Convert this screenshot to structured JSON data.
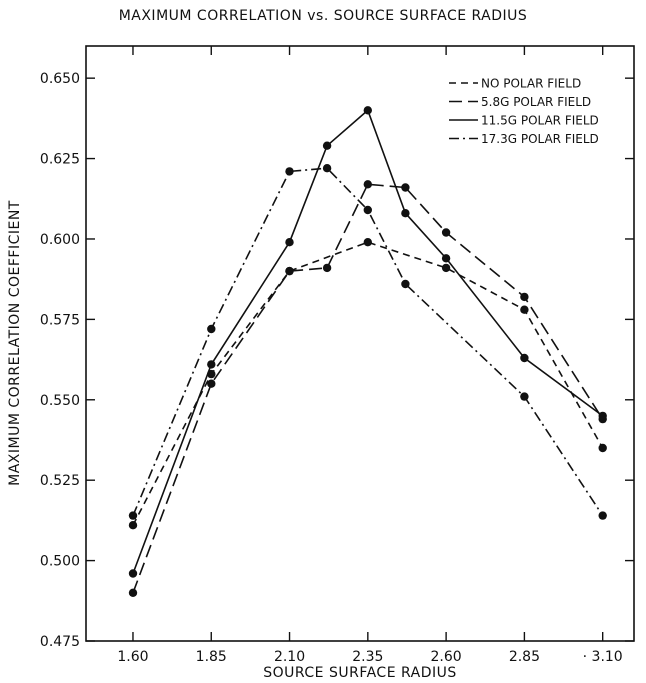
{
  "chart_data": {
    "type": "line",
    "title": "MAXIMUM CORRELATION vs. SOURCE SURFACE RADIUS",
    "xlabel": "SOURCE SURFACE RADIUS",
    "ylabel": "MAXIMUM CORRELATION COEFFICIENT",
    "xlim": [
      1.45,
      3.2
    ],
    "ylim": [
      0.475,
      0.66
    ],
    "x_ticks": [
      1.6,
      1.85,
      2.1,
      2.35,
      2.6,
      2.85,
      3.1
    ],
    "x_tick_labels": [
      "1.60",
      "1.85",
      "2.10",
      "2.35",
      "2.60",
      "2.85",
      "· 3.10"
    ],
    "y_ticks": [
      0.475,
      0.5,
      0.525,
      0.55,
      0.575,
      0.6,
      0.625,
      0.65
    ],
    "y_tick_labels": [
      "0.475",
      "0.500",
      "0.525",
      "0.550",
      "0.575",
      "0.600",
      "0.625",
      "0.650"
    ],
    "grid": false,
    "legend_position": "top-right",
    "series": [
      {
        "name": "NO POLAR FIELD",
        "style": "short-dash",
        "color": "#111111",
        "points": [
          [
            1.6,
            0.511
          ],
          [
            1.85,
            0.558
          ],
          [
            2.1,
            0.59
          ],
          [
            2.35,
            0.599
          ],
          [
            2.6,
            0.591
          ],
          [
            2.85,
            0.578
          ],
          [
            3.1,
            0.535
          ]
        ]
      },
      {
        "name": "5.8G POLAR FIELD",
        "style": "long-dash",
        "color": "#111111",
        "points": [
          [
            1.6,
            0.49
          ],
          [
            1.85,
            0.555
          ],
          [
            2.1,
            0.59
          ],
          [
            2.22,
            0.591
          ],
          [
            2.35,
            0.617
          ],
          [
            2.47,
            0.616
          ],
          [
            2.6,
            0.602
          ],
          [
            2.85,
            0.582
          ],
          [
            3.1,
            0.544
          ]
        ]
      },
      {
        "name": "11.5G POLAR FIELD",
        "style": "solid",
        "color": "#111111",
        "points": [
          [
            1.6,
            0.496
          ],
          [
            1.85,
            0.561
          ],
          [
            2.1,
            0.599
          ],
          [
            2.22,
            0.629
          ],
          [
            2.35,
            0.64
          ],
          [
            2.47,
            0.608
          ],
          [
            2.6,
            0.594
          ],
          [
            2.85,
            0.563
          ],
          [
            3.1,
            0.545
          ]
        ]
      },
      {
        "name": "17.3G POLAR FIELD",
        "style": "dash-dot",
        "color": "#111111",
        "points": [
          [
            1.6,
            0.514
          ],
          [
            1.85,
            0.572
          ],
          [
            2.1,
            0.621
          ],
          [
            2.22,
            0.622
          ],
          [
            2.35,
            0.609
          ],
          [
            2.47,
            0.586
          ],
          [
            2.85,
            0.551
          ],
          [
            3.1,
            0.514
          ]
        ]
      }
    ]
  }
}
